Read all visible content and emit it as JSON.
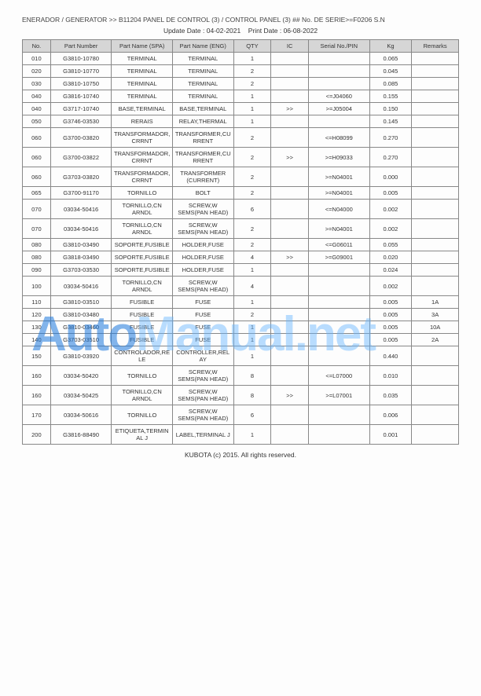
{
  "header": "ENERADOR / GENERATOR >> B11204   PANEL DE CONTROL (3) / CONTROL PANEL (3) ## No. DE SERIE>=F0206 S.N",
  "update_date_label": "Update Date : 04-02-2021",
  "print_date_label": "Print Date : 06-08-2022",
  "columns": {
    "no": "No.",
    "part_number": "Part Number",
    "spa": "Part Name (SPA)",
    "eng": "Part Name (ENG)",
    "qty": "QTY",
    "ic": "IC",
    "serial": "Serial No./PIN",
    "kg": "Kg",
    "remarks": "Remarks"
  },
  "rows": [
    {
      "no": "010",
      "pn": "G3810-10780",
      "spa": "TERMINAL",
      "eng": "TERMINAL",
      "qty": "1",
      "ic": "",
      "ser": "",
      "kg": "0.065",
      "rem": ""
    },
    {
      "no": "020",
      "pn": "G3810-10770",
      "spa": "TERMINAL",
      "eng": "TERMINAL",
      "qty": "2",
      "ic": "",
      "ser": "",
      "kg": "0.045",
      "rem": ""
    },
    {
      "no": "030",
      "pn": "G3810-10750",
      "spa": "TERMINAL",
      "eng": "TERMINAL",
      "qty": "2",
      "ic": "",
      "ser": "",
      "kg": "0.085",
      "rem": ""
    },
    {
      "no": "040",
      "pn": "G3816-10740",
      "spa": "TERMINAL",
      "eng": "TERMINAL",
      "qty": "1",
      "ic": "",
      "ser": "<=J04060",
      "kg": "0.155",
      "rem": ""
    },
    {
      "no": "040",
      "pn": "G3717-10740",
      "spa": "BASE,TERMINAL",
      "eng": "BASE,TERMINAL",
      "qty": "1",
      "ic": ">>",
      "ser": ">=J05004",
      "kg": "0.150",
      "rem": ""
    },
    {
      "no": "050",
      "pn": "G3746-03530",
      "spa": "RERAIS",
      "eng": "RELAY,THERMAL",
      "qty": "1",
      "ic": "",
      "ser": "",
      "kg": "0.145",
      "rem": ""
    },
    {
      "no": "060",
      "pn": "G3700-03820",
      "spa": "TRANSFORMADOR,CRRNT",
      "eng": "TRANSFORMER,CURRENT",
      "qty": "2",
      "ic": "",
      "ser": "<=H08099",
      "kg": "0.270",
      "rem": ""
    },
    {
      "no": "060",
      "pn": "G3700-03822",
      "spa": "TRANSFORMADOR,CRRNT",
      "eng": "TRANSFORMER,CURRENT",
      "qty": "2",
      "ic": ">>",
      "ser": ">=H09033",
      "kg": "0.270",
      "rem": ""
    },
    {
      "no": "060",
      "pn": "G3703-03820",
      "spa": "TRANSFORMADOR,CRRNT",
      "eng": "TRANSFORMER (CURRENT)",
      "qty": "2",
      "ic": "",
      "ser": ">=N04001",
      "kg": "0.000",
      "rem": ""
    },
    {
      "no": "065",
      "pn": "G3700-91170",
      "spa": "TORNILLO",
      "eng": "BOLT",
      "qty": "2",
      "ic": "",
      "ser": ">=N04001",
      "kg": "0.005",
      "rem": ""
    },
    {
      "no": "070",
      "pn": "03034-50416",
      "spa": "TORNILLO,CN ARNDL",
      "eng": "SCREW,W SEMS(PAN HEAD)",
      "qty": "6",
      "ic": "",
      "ser": "<=N04000",
      "kg": "0.002",
      "rem": ""
    },
    {
      "no": "070",
      "pn": "03034-50416",
      "spa": "TORNILLO,CN ARNDL",
      "eng": "SCREW,W SEMS(PAN HEAD)",
      "qty": "2",
      "ic": "",
      "ser": ">=N04001",
      "kg": "0.002",
      "rem": ""
    },
    {
      "no": "080",
      "pn": "G3810-03490",
      "spa": "SOPORTE,FUSIBLE",
      "eng": "HOLDER,FUSE",
      "qty": "2",
      "ic": "",
      "ser": "<=G06011",
      "kg": "0.055",
      "rem": ""
    },
    {
      "no": "080",
      "pn": "G3818-03490",
      "spa": "SOPORTE,FUSIBLE",
      "eng": "HOLDER,FUSE",
      "qty": "4",
      "ic": ">>",
      "ser": ">=G09001",
      "kg": "0.020",
      "rem": ""
    },
    {
      "no": "090",
      "pn": "G3703-03530",
      "spa": "SOPORTE,FUSIBLE",
      "eng": "HOLDER,FUSE",
      "qty": "1",
      "ic": "",
      "ser": "",
      "kg": "0.024",
      "rem": ""
    },
    {
      "no": "100",
      "pn": "03034-50416",
      "spa": "TORNILLO,CN ARNDL",
      "eng": "SCREW,W SEMS(PAN HEAD)",
      "qty": "4",
      "ic": "",
      "ser": "",
      "kg": "0.002",
      "rem": ""
    },
    {
      "no": "110",
      "pn": "G3810-03510",
      "spa": "FUSIBLE",
      "eng": "FUSE",
      "qty": "1",
      "ic": "",
      "ser": "",
      "kg": "0.005",
      "rem": "1A"
    },
    {
      "no": "120",
      "pn": "G3810-03480",
      "spa": "FUSIBLE",
      "eng": "FUSE",
      "qty": "2",
      "ic": "",
      "ser": "",
      "kg": "0.005",
      "rem": "3A"
    },
    {
      "no": "130",
      "pn": "G3810-03460",
      "spa": "FUSIBLE",
      "eng": "FUSE",
      "qty": "1",
      "ic": "",
      "ser": "",
      "kg": "0.005",
      "rem": "10A"
    },
    {
      "no": "140",
      "pn": "G3703-03510",
      "spa": "FUSIBLE",
      "eng": "FUSE",
      "qty": "1",
      "ic": "",
      "ser": "",
      "kg": "0.005",
      "rem": "2A"
    },
    {
      "no": "150",
      "pn": "G3810-03920",
      "spa": "CONTROLADOR,RELE",
      "eng": "CONTROLLER,RELAY",
      "qty": "1",
      "ic": "",
      "ser": "",
      "kg": "0.440",
      "rem": ""
    },
    {
      "no": "160",
      "pn": "03034-50420",
      "spa": "TORNILLO",
      "eng": "SCREW,W SEMS(PAN HEAD)",
      "qty": "8",
      "ic": "",
      "ser": "<=L07000",
      "kg": "0.010",
      "rem": ""
    },
    {
      "no": "160",
      "pn": "03034-50425",
      "spa": "TORNILLO,CN ARNDL",
      "eng": "SCREW,W SEMS(PAN HEAD)",
      "qty": "8",
      "ic": ">>",
      "ser": ">=L07001",
      "kg": "0.035",
      "rem": ""
    },
    {
      "no": "170",
      "pn": "03034-50616",
      "spa": "TORNILLO",
      "eng": "SCREW,W SEMS(PAN HEAD)",
      "qty": "6",
      "ic": "",
      "ser": "",
      "kg": "0.006",
      "rem": ""
    },
    {
      "no": "200",
      "pn": "G3816-88490",
      "spa": "ETIQUETA,TERMINAL J",
      "eng": "LABEL,TERMINAL J",
      "qty": "1",
      "ic": "",
      "ser": "",
      "kg": "0.001",
      "rem": ""
    }
  ],
  "footer": "KUBOTA (c) 2015. All rights reserved.",
  "watermark": {
    "part1": "Auto",
    "part2": "Manual.net"
  },
  "styling": {
    "header_bg": "#d6d6d6",
    "border_color": "#888888",
    "page_bg": "#fdfdfd",
    "font_size_base": 8
  }
}
